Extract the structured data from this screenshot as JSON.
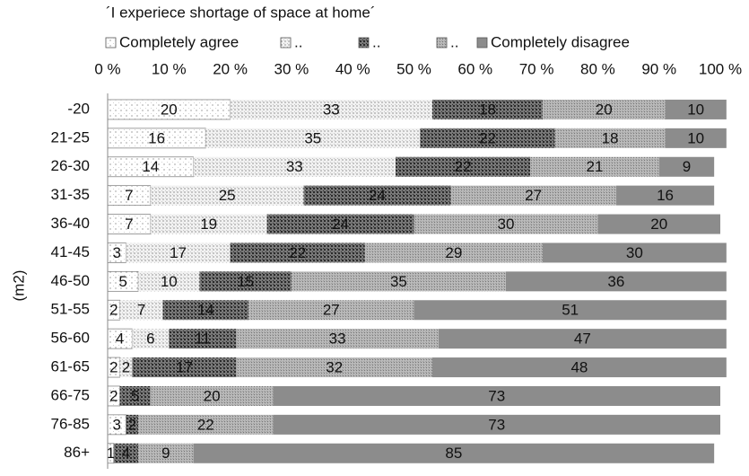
{
  "chart_data": {
    "type": "stacked_barh",
    "title": "´I experiece shortage of space at home´",
    "y_label": "(m2)",
    "categories": [
      "-20",
      "21-25",
      "26-30",
      "31-35",
      "36-40",
      "41-45",
      "46-50",
      "51-55",
      "56-60",
      "61-65",
      "66-75",
      "76-85",
      "86+"
    ],
    "series": [
      {
        "name": "Completely agree",
        "color": "#ffffff",
        "values": [
          20,
          16,
          14,
          7,
          7,
          3,
          5,
          2,
          4,
          2,
          2,
          3,
          1
        ]
      },
      {
        "name": "..",
        "color": "#f2f2f2",
        "values": [
          33,
          35,
          33,
          25,
          19,
          17,
          10,
          7,
          6,
          2,
          0,
          0,
          0
        ]
      },
      {
        "name": "..",
        "color": "#7a7a7a",
        "values": [
          18,
          22,
          22,
          24,
          24,
          22,
          15,
          14,
          11,
          17,
          5,
          2,
          4
        ]
      },
      {
        "name": "..",
        "color": "#bdbdbd",
        "values": [
          20,
          18,
          21,
          27,
          30,
          29,
          35,
          27,
          33,
          32,
          20,
          22,
          9
        ]
      },
      {
        "name": "Completely disagree",
        "color": "#8c8c8c",
        "values": [
          10,
          10,
          9,
          16,
          20,
          30,
          36,
          51,
          47,
          48,
          73,
          73,
          85
        ]
      }
    ],
    "xlim": [
      0,
      100
    ],
    "xticks": [
      {
        "value": 0,
        "label": "0 %"
      },
      {
        "value": 10,
        "label": "10 %"
      },
      {
        "value": 20,
        "label": "20 %"
      },
      {
        "value": 30,
        "label": "30 %"
      },
      {
        "value": 40,
        "label": "40 %"
      },
      {
        "value": 50,
        "label": "50 %"
      },
      {
        "value": 60,
        "label": "60 %"
      },
      {
        "value": 70,
        "label": "70 %"
      },
      {
        "value": 80,
        "label": "80 %"
      },
      {
        "value": 90,
        "label": "90 %"
      },
      {
        "value": 100,
        "label": "100 %"
      }
    ]
  }
}
